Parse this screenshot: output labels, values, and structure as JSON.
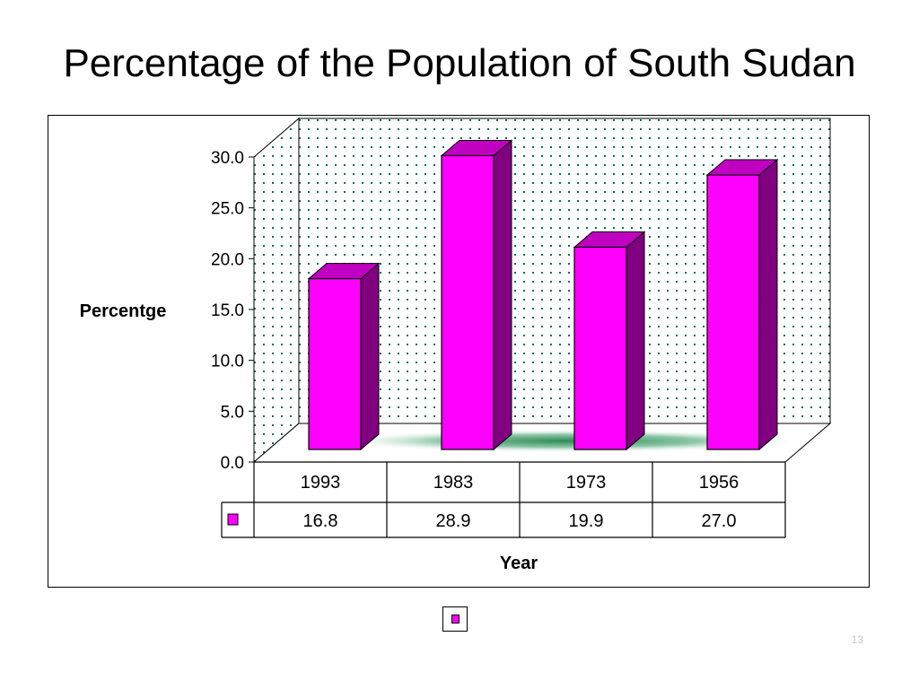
{
  "slide": {
    "title": "Percentage of the Population of South Sudan",
    "page_number": "13"
  },
  "colors": {
    "bar_front": "#ff00ff",
    "bar_top": "#c000c0",
    "bar_side": "#800080",
    "wall_dots": "#007060",
    "floor_shadow": "#2e8b57"
  },
  "chart_data": {
    "type": "bar",
    "style": "3d-column",
    "categories": [
      "1993",
      "1983",
      "1973",
      "1956"
    ],
    "series": [
      {
        "values": [
          16.8,
          28.9,
          19.9,
          27.0
        ]
      }
    ],
    "ylabel": "Percentge",
    "xlabel": "Year",
    "ylim": [
      0,
      30
    ],
    "y_ticks": [
      "30.0",
      "25.0",
      "20.0",
      "15.0",
      "10.0",
      "5.0",
      "0.0"
    ],
    "data_table_values": [
      "16.8",
      "28.9",
      "19.9",
      "27.0"
    ],
    "grid": false,
    "legend": "bottom-center"
  }
}
